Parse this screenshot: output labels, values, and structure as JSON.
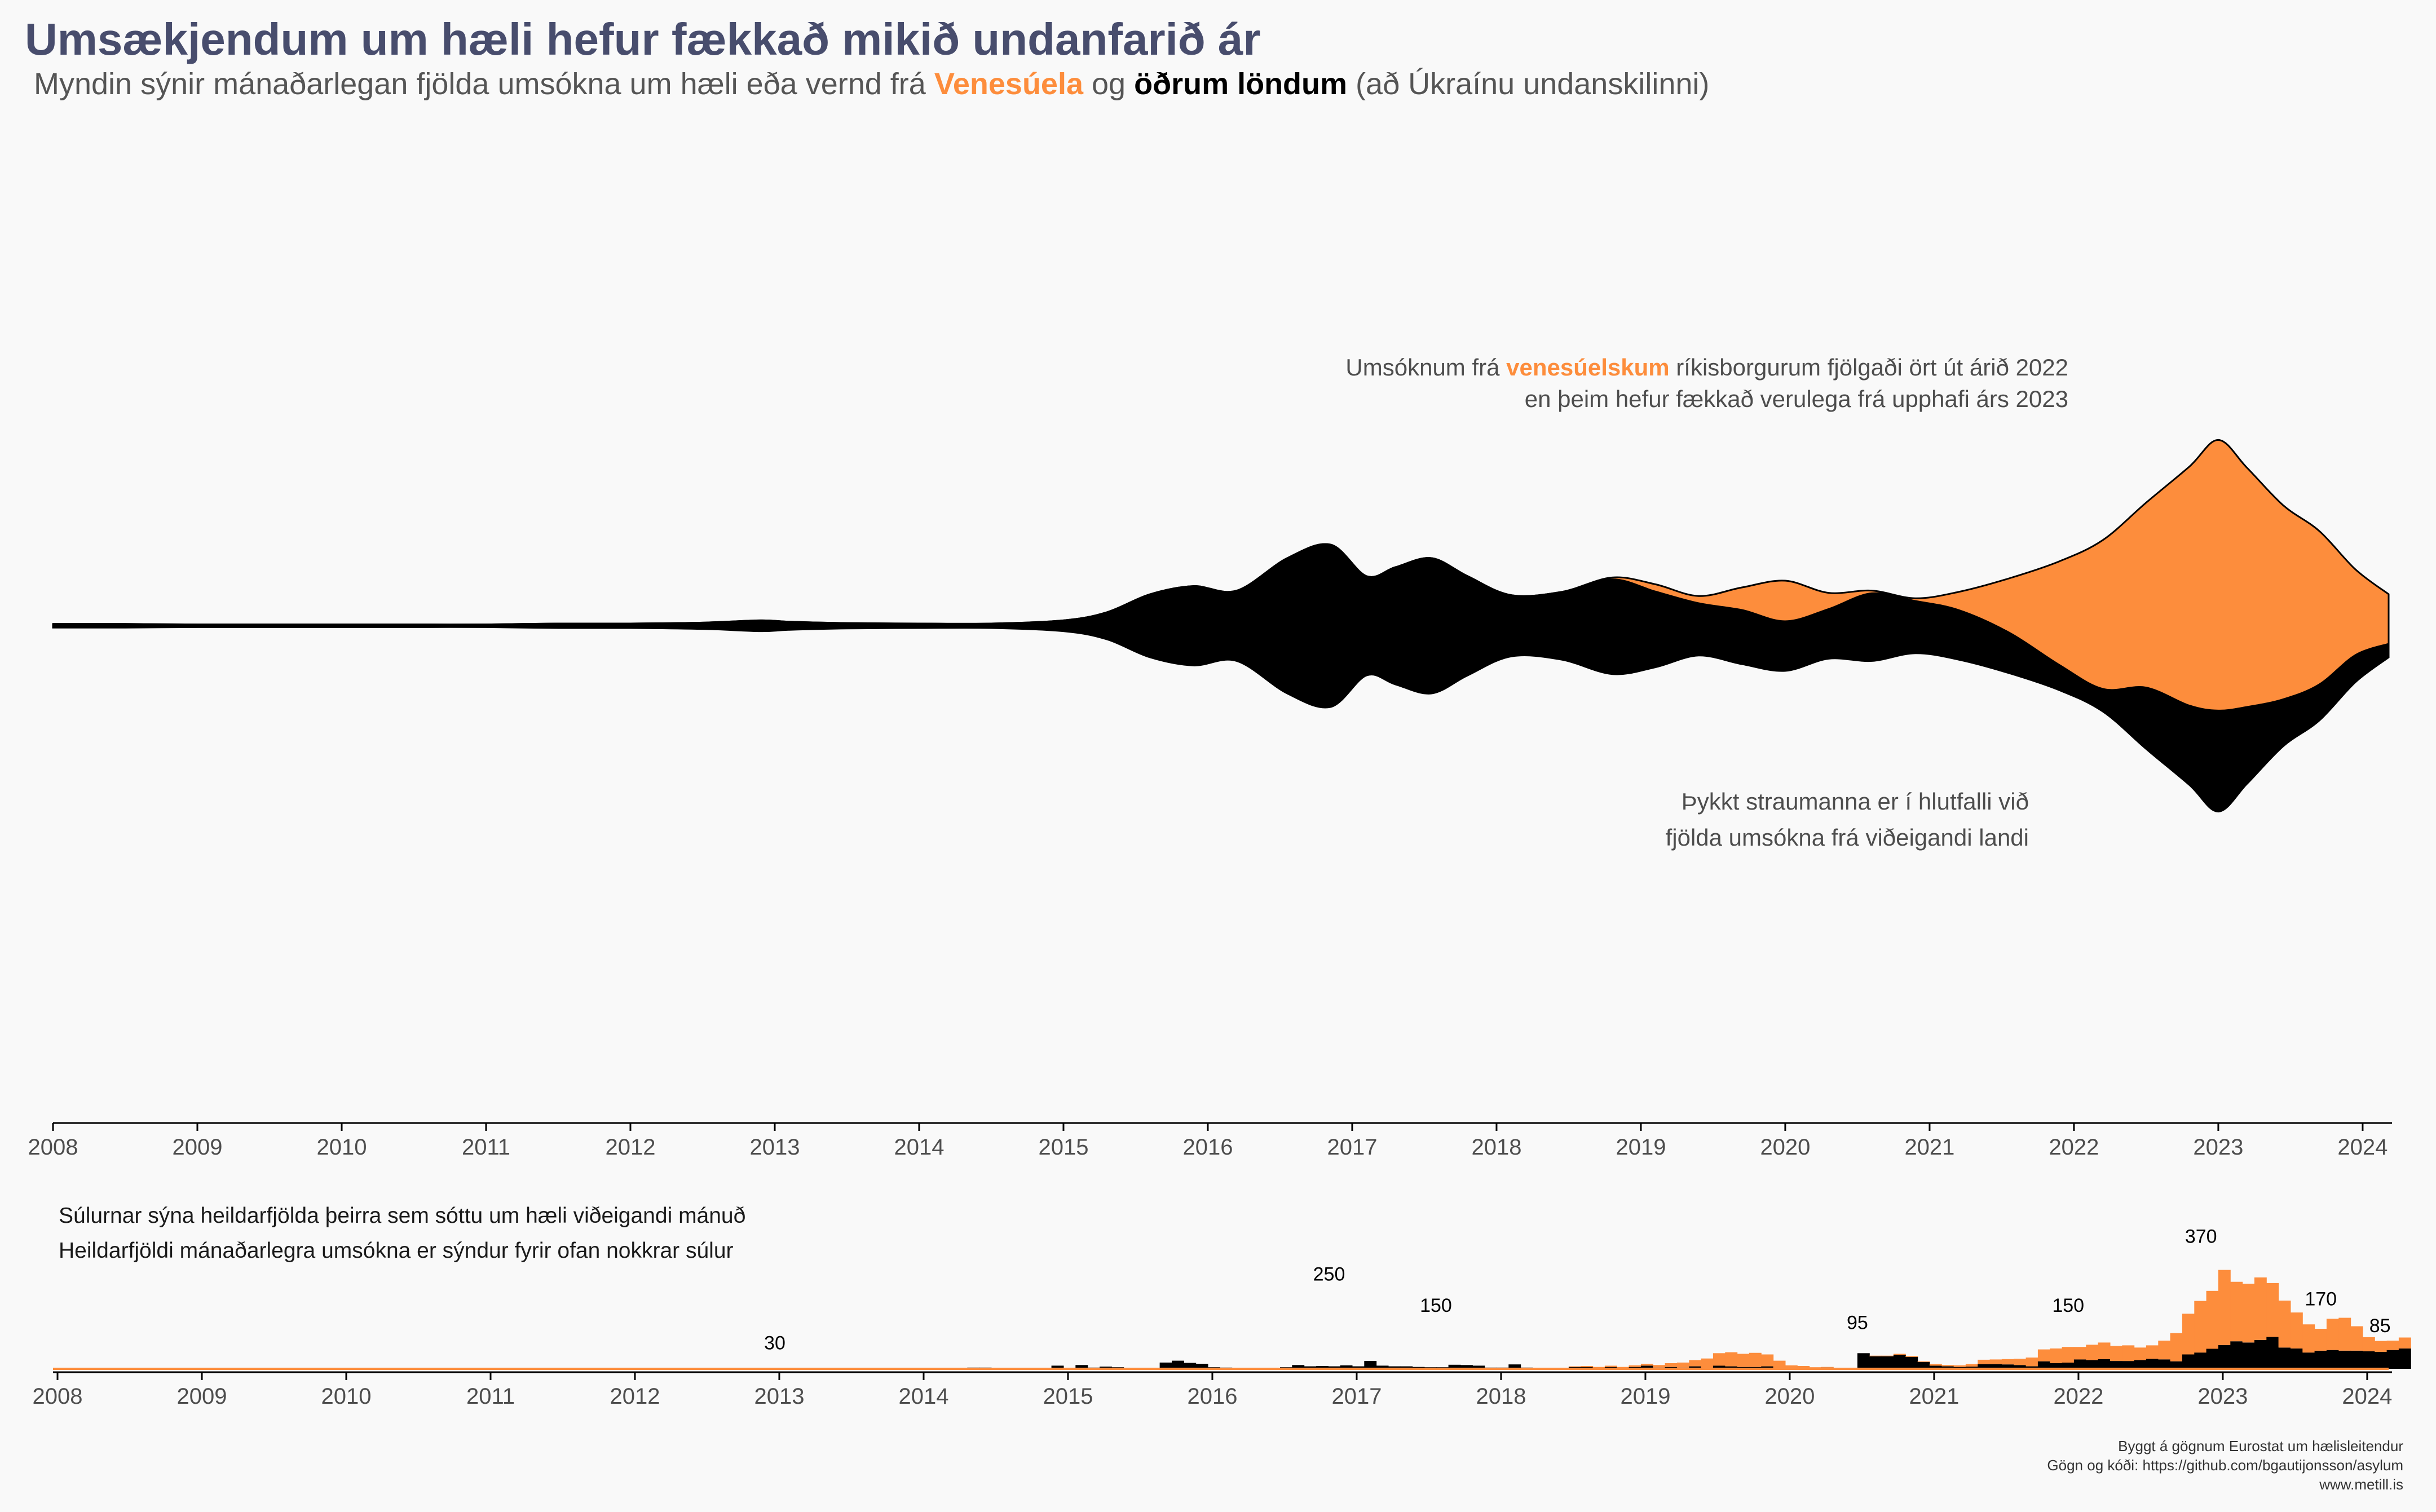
{
  "title": "Umsækjendum um hæli hefur fækkað mikið undanfarið ár",
  "subtitle": {
    "before": "Myndin sýnir mánaðarlegan fjölda umsókna um hæli eða vernd frá ",
    "venezuela": "Venesúela",
    "middle": " og ",
    "others": "öðrum löndum",
    "after": " (að Úkraínu undanskilinni)"
  },
  "annotation_top": {
    "line1_before": "Umsóknum frá ",
    "line1_highlight": "venesúelskum",
    "line1_after": " ríkisborgurum fjölgaði ört út árið 2022",
    "line2": "en þeim hefur fækkað verulega frá upphafi árs 2023"
  },
  "annotation_bottom": {
    "line1": "Þykkt straumanna er í hlutfalli við",
    "line2": "fjölda umsókna frá viðeigandi landi"
  },
  "bar_note": {
    "line1": "Súlurnar sýna heildarfjölda þeirra sem sóttu um hæli viðeigandi mánuð",
    "line2": "Heildarfjöldi mánaðarlegra umsókna er sýndur fyrir ofan nokkrar súlur"
  },
  "caption": {
    "line1": "Byggt á gögnum Eurostat um hælisleitendur",
    "line2": "Gögn og kóði:  https://github.com/bgautijonsson/asylum",
    "line3": "www.metill.is"
  },
  "colors": {
    "venezuela": "#fd8d3c",
    "others": "#000000",
    "title": "#484d6d"
  },
  "chart_data": [
    {
      "type": "area",
      "stacked": true,
      "centered": true,
      "smoothed": true,
      "xlim": [
        2008,
        2024.18
      ],
      "x_ticks": [
        "2008",
        "2009",
        "2010",
        "2011",
        "2012",
        "2013",
        "2014",
        "2015",
        "2016",
        "2017",
        "2018",
        "2019",
        "2020",
        "2021",
        "2022",
        "2023",
        "2024"
      ],
      "x": [
        2008.0,
        2008.5,
        2009.0,
        2009.5,
        2010.0,
        2010.5,
        2011.0,
        2011.5,
        2012.0,
        2012.5,
        2012.9,
        2013.1,
        2013.5,
        2014.0,
        2014.5,
        2015.0,
        2015.3,
        2015.6,
        2015.9,
        2016.2,
        2016.55,
        2016.85,
        2017.1,
        2017.3,
        2017.55,
        2017.8,
        2018.1,
        2018.45,
        2018.8,
        2019.1,
        2019.4,
        2019.7,
        2020.0,
        2020.3,
        2020.6,
        2020.9,
        2021.2,
        2021.55,
        2021.9,
        2022.2,
        2022.5,
        2022.8,
        2023.0,
        2023.2,
        2023.45,
        2023.7,
        2023.95,
        2024.18
      ],
      "series": [
        {
          "name": "Venesúela",
          "values": [
            0,
            0,
            0,
            0,
            0,
            0,
            0,
            0,
            0,
            0,
            0,
            0,
            0,
            0,
            0,
            0,
            0,
            0,
            0,
            0,
            0,
            0,
            0,
            0,
            0,
            0,
            0,
            0,
            2,
            8,
            8,
            25,
            45,
            18,
            3,
            3,
            20,
            60,
            115,
            165,
            205,
            265,
            300,
            265,
            215,
            170,
            95,
            55
          ]
        },
        {
          "name": "öðrum löndum",
          "values": [
            4,
            4,
            3,
            3,
            3,
            3,
            3,
            5,
            5,
            7,
            12,
            9,
            6,
            5,
            5,
            12,
            30,
            70,
            88,
            78,
            150,
            180,
            110,
            130,
            150,
            110,
            68,
            75,
            105,
            84,
            58,
            60,
            55,
            55,
            75,
            58,
            55,
            45,
            28,
            25,
            68,
            88,
            112,
            85,
            52,
            40,
            30,
            15
          ]
        }
      ]
    },
    {
      "type": "bar",
      "stacked": true,
      "xlim": [
        2008,
        2024.18
      ],
      "x_ticks": [
        "2008",
        "2009",
        "2010",
        "2011",
        "2012",
        "2013",
        "2014",
        "2015",
        "2016",
        "2017",
        "2018",
        "2019",
        "2020",
        "2021",
        "2022",
        "2023",
        "2024"
      ],
      "bar_labels": [
        {
          "x": 2013.0,
          "value": 30,
          "text": "30"
        },
        {
          "x": 2016.84,
          "value": 250,
          "text": "250"
        },
        {
          "x": 2017.58,
          "value": 150,
          "text": "150"
        },
        {
          "x": 2020.5,
          "value": 95,
          "text": "95"
        },
        {
          "x": 2021.96,
          "value": 150,
          "text": "150"
        },
        {
          "x": 2022.88,
          "value": 370,
          "text": "370"
        },
        {
          "x": 2023.71,
          "value": 170,
          "text": "170"
        },
        {
          "x": 2024.12,
          "value": 85,
          "text": "85"
        }
      ],
      "series": [
        {
          "name": "Venesúela",
          "values": [
            0,
            0,
            0,
            0,
            0,
            0,
            0,
            0,
            0,
            0,
            0,
            0,
            0,
            0,
            0,
            0,
            0,
            0,
            0,
            0,
            0,
            0,
            0,
            0,
            0,
            0,
            0,
            0,
            0,
            0,
            0,
            0,
            0,
            0,
            0,
            0,
            0,
            0,
            0,
            0,
            0,
            0,
            0,
            0,
            0,
            0,
            0,
            0,
            0,
            0,
            0,
            0,
            0,
            0,
            0,
            0,
            0,
            0,
            0,
            0,
            0,
            0,
            0,
            0,
            0,
            0,
            0,
            0,
            0,
            0,
            0,
            0,
            0,
            0,
            0,
            0,
            0,
            0,
            0,
            0,
            0,
            0,
            0,
            0,
            0,
            0,
            0,
            0,
            0,
            0,
            0,
            0,
            0,
            0,
            0,
            0,
            0,
            0,
            0,
            0,
            0,
            0,
            0,
            0,
            0,
            0,
            0,
            0,
            0,
            0,
            0,
            0,
            0,
            0,
            0,
            0,
            0,
            0,
            0,
            0,
            0,
            0,
            0,
            0,
            0,
            0,
            2,
            3,
            3,
            4,
            4,
            5,
            6,
            8,
            12,
            16,
            20,
            30,
            40,
            45,
            42,
            45,
            38,
            24,
            10,
            8,
            3,
            2,
            0,
            0,
            0,
            2,
            2,
            3,
            3,
            2,
            5,
            4,
            5,
            8,
            14,
            15,
            17,
            20,
            28,
            38,
            47,
            50,
            40,
            49,
            53,
            48,
            50,
            40,
            43,
            60,
            90,
            130,
            165,
            185,
            240,
            190,
            188,
            200,
            172,
            150,
            115,
            90,
            70,
            100,
            105,
            78,
            45,
            35,
            30,
            35
          ]
        },
        {
          "name": "öðrum löndum",
          "values": [
            1,
            1,
            1,
            3,
            2,
            1,
            1,
            1,
            1,
            1,
            3,
            2,
            1,
            2,
            1,
            1,
            1,
            1,
            1,
            1,
            1,
            2,
            2,
            1,
            1,
            1,
            1,
            2,
            1,
            1,
            1,
            1,
            1,
            1,
            1,
            1,
            1,
            1,
            1,
            2,
            1,
            2,
            1,
            1,
            1,
            1,
            1,
            1,
            1,
            1,
            1,
            1,
            1,
            1,
            1,
            1,
            1,
            1,
            1,
            1,
            1,
            1,
            1,
            1,
            1,
            1,
            1,
            1,
            1,
            1,
            1,
            1,
            1,
            1,
            1,
            1,
            4,
            4,
            3,
            3,
            1,
            1,
            3,
            10,
            3,
            12,
            4,
            7,
            5,
            3,
            2,
            3,
            20,
            26,
            19,
            16,
            5,
            4,
            3,
            3,
            3,
            2,
            5,
            12,
            8,
            9,
            8,
            11,
            8,
            25,
            10,
            8,
            8,
            6,
            5,
            5,
            13,
            12,
            10,
            4,
            4,
            14,
            4,
            3,
            1,
            2,
            6,
            6,
            3,
            6,
            2,
            6,
            10,
            4,
            6,
            4,
            8,
            3,
            10,
            8,
            6,
            6,
            8,
            2,
            1,
            1,
            2,
            4,
            1,
            1,
            50,
            40,
            40,
            45,
            38,
            22,
            10,
            8,
            6,
            7,
            15,
            15,
            14,
            12,
            8,
            24,
            18,
            20,
            30,
            28,
            31,
            25,
            25,
            28,
            32,
            30,
            24,
            46,
            52,
            64,
            76,
            88,
            84,
            92,
            102,
            68,
            65,
            52,
            58,
            60,
            58,
            58,
            56,
            54,
            60,
            65,
            50,
            40,
            35,
            32,
            35,
            30
          ]
        }
      ]
    }
  ]
}
